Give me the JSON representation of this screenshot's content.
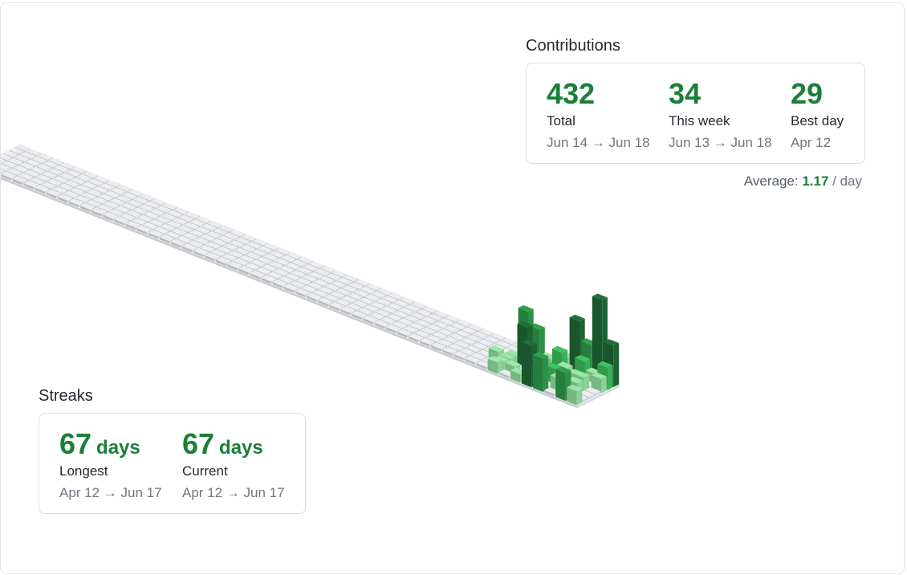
{
  "contributions": {
    "title": "Contributions",
    "stats": [
      {
        "value": "432",
        "label": "Total",
        "range": "Jun 14 → Jun 18"
      },
      {
        "value": "34",
        "label": "This week",
        "range": "Jun 13 → Jun 18"
      },
      {
        "value": "29",
        "label": "Best day",
        "range": "Apr 12"
      }
    ],
    "average_label": "Average:",
    "average_value": "1.17",
    "average_unit": "/ day"
  },
  "streaks": {
    "title": "Streaks",
    "stats": [
      {
        "value": "67",
        "unit": "days",
        "label": "Longest",
        "range": "Apr 12 → Jun 17"
      },
      {
        "value": "67",
        "unit": "days",
        "label": "Current",
        "range": "Apr 12 → Jun 17"
      }
    ]
  },
  "colors": {
    "accent": "#1a7f37",
    "empty": "#ebedf0",
    "level1": "#9be9a8",
    "level2": "#40c463",
    "level3": "#30a14e",
    "level4": "#216e39"
  }
}
